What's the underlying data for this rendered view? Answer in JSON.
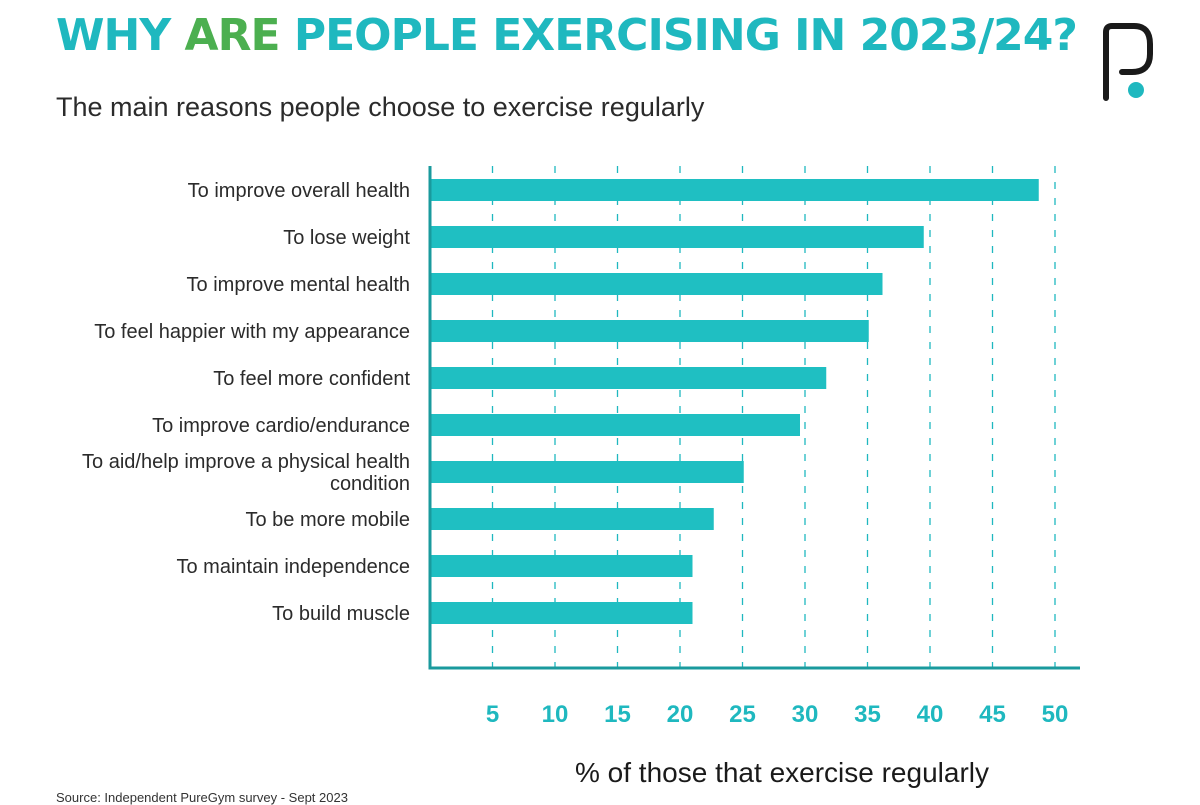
{
  "header": {
    "title_parts": [
      {
        "text": "WHY ",
        "color": "#1fb8bf"
      },
      {
        "text": "ARE",
        "color": "#4caf50"
      },
      {
        "text": " PEOPLE EXERCISING IN 2023/24?",
        "color": "#1fb8bf"
      }
    ],
    "subtitle": "The main reasons people choose to exercise regularly"
  },
  "brand": {
    "logo_icon": "puregym-p-logo-icon",
    "dot_color": "#1fb8bf",
    "ink_color": "#1a1a1a"
  },
  "colors": {
    "bar": "#1fbfc2",
    "axis": "#1a9a9d",
    "tick_label": "#1fb8bf",
    "grid": "#1fb8bf",
    "category_text": "#2b2b2b"
  },
  "chart_data": {
    "type": "bar",
    "orientation": "horizontal",
    "categories": [
      [
        "To improve overall health"
      ],
      [
        "To lose weight"
      ],
      [
        "To improve mental health"
      ],
      [
        "To feel happier with my appearance"
      ],
      [
        "To feel more confident"
      ],
      [
        "To improve cardio/endurance"
      ],
      [
        "To aid/help improve a physical health",
        "condition"
      ],
      [
        "To be more mobile"
      ],
      [
        "To maintain independence"
      ],
      [
        "To build muscle"
      ]
    ],
    "values": [
      48.7,
      39.5,
      36.2,
      35.1,
      31.7,
      29.6,
      25.1,
      22.7,
      21.0,
      21.0
    ],
    "xticks": [
      "5",
      "10",
      "15",
      "20",
      "25",
      "30",
      "35",
      "40",
      "45",
      "50"
    ],
    "xlim": [
      0,
      52
    ],
    "xlabel": "% of those that exercise regularly",
    "grid": true
  },
  "footer": {
    "source": "Source: Independent PureGym survey - Sept 2023"
  }
}
